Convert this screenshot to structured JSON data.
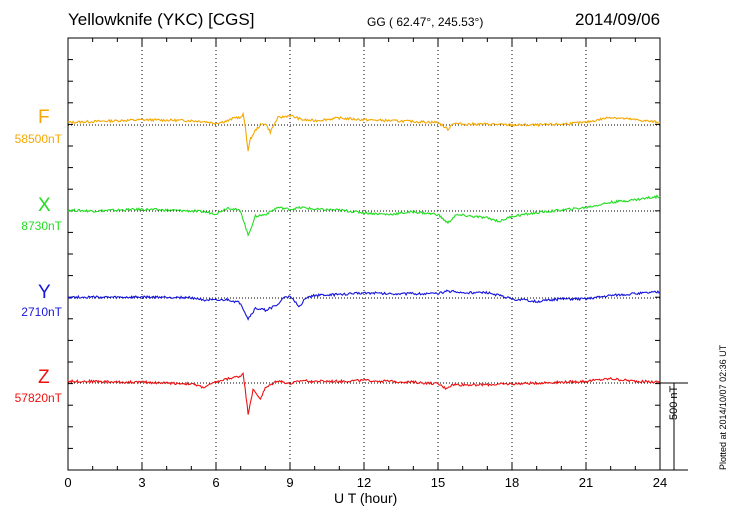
{
  "header": {
    "station": "Yellowknife (YKC)  [CGS]",
    "coords": "GG ( 62.47°, 245.53°)",
    "date": "2014/09/06"
  },
  "footer": {
    "plotted": "Plotted at 2014/10/07 02:36 UT",
    "scale": "500 nT"
  },
  "chart_data": {
    "type": "line",
    "xlabel": "U T (hour)",
    "xlim": [
      0,
      24
    ],
    "xticks": [
      0,
      3,
      6,
      9,
      12,
      15,
      18,
      21,
      24
    ],
    "scale_bar_nT": 500,
    "grid": "dotted vertical every 3 h; dotted baseline per component",
    "series": [
      {
        "name": "F",
        "baseline": "58500nT",
        "color": "#f5a800",
        "points": [
          [
            0,
            15
          ],
          [
            1,
            20
          ],
          [
            2,
            25
          ],
          [
            3,
            30
          ],
          [
            4,
            28
          ],
          [
            5,
            25
          ],
          [
            5.5,
            20
          ],
          [
            6,
            10
          ],
          [
            6.5,
            25
          ],
          [
            6.8,
            45
          ],
          [
            7,
            40
          ],
          [
            7.1,
            60
          ],
          [
            7.2,
            -20
          ],
          [
            7.3,
            -150
          ],
          [
            7.4,
            -80
          ],
          [
            7.6,
            -30
          ],
          [
            7.8,
            0
          ],
          [
            8,
            10
          ],
          [
            8.2,
            -40
          ],
          [
            8.5,
            40
          ],
          [
            9,
            55
          ],
          [
            9.5,
            30
          ],
          [
            10,
            25
          ],
          [
            11,
            40
          ],
          [
            12,
            30
          ],
          [
            13,
            25
          ],
          [
            14,
            20
          ],
          [
            15,
            15
          ],
          [
            15.4,
            -25
          ],
          [
            15.6,
            10
          ],
          [
            16,
            5
          ],
          [
            17,
            5
          ],
          [
            18,
            0
          ],
          [
            19,
            0
          ],
          [
            20,
            5
          ],
          [
            21,
            15
          ],
          [
            22,
            45
          ],
          [
            23,
            30
          ],
          [
            24,
            15
          ]
        ]
      },
      {
        "name": "X",
        "baseline": "8730nT",
        "color": "#22dd22",
        "points": [
          [
            0,
            5
          ],
          [
            1,
            0
          ],
          [
            2,
            5
          ],
          [
            3,
            10
          ],
          [
            4,
            5
          ],
          [
            5,
            0
          ],
          [
            5.5,
            -5
          ],
          [
            6,
            -15
          ],
          [
            6.5,
            20
          ],
          [
            7,
            0
          ],
          [
            7.3,
            -140
          ],
          [
            7.6,
            -30
          ],
          [
            8,
            -20
          ],
          [
            8.5,
            20
          ],
          [
            9,
            10
          ],
          [
            9.5,
            20
          ],
          [
            10,
            10
          ],
          [
            11,
            5
          ],
          [
            12,
            -10
          ],
          [
            13,
            -20
          ],
          [
            14,
            -5
          ],
          [
            15,
            -20
          ],
          [
            15.4,
            -70
          ],
          [
            15.7,
            -25
          ],
          [
            16,
            -25
          ],
          [
            17,
            -40
          ],
          [
            17.5,
            -60
          ],
          [
            18,
            -30
          ],
          [
            19,
            -10
          ],
          [
            20,
            5
          ],
          [
            21,
            20
          ],
          [
            22,
            50
          ],
          [
            23,
            65
          ],
          [
            24,
            85
          ]
        ]
      },
      {
        "name": "Y",
        "baseline": "2710nT",
        "color": "#1515dd",
        "points": [
          [
            0,
            5
          ],
          [
            1,
            5
          ],
          [
            2,
            3
          ],
          [
            3,
            5
          ],
          [
            4,
            5
          ],
          [
            5,
            2
          ],
          [
            5.5,
            -10
          ],
          [
            6,
            -15
          ],
          [
            6.5,
            -10
          ],
          [
            7,
            -30
          ],
          [
            7.3,
            -120
          ],
          [
            7.6,
            -60
          ],
          [
            8,
            -70
          ],
          [
            8.5,
            -40
          ],
          [
            8.8,
            10
          ],
          [
            9,
            5
          ],
          [
            9.4,
            -50
          ],
          [
            9.6,
            0
          ],
          [
            10,
            15
          ],
          [
            11,
            20
          ],
          [
            12,
            30
          ],
          [
            13,
            25
          ],
          [
            14,
            25
          ],
          [
            15,
            25
          ],
          [
            15.4,
            40
          ],
          [
            16,
            30
          ],
          [
            17,
            30
          ],
          [
            18,
            -5
          ],
          [
            19,
            -20
          ],
          [
            20,
            -5
          ],
          [
            21,
            -5
          ],
          [
            22,
            15
          ],
          [
            23,
            25
          ],
          [
            24,
            35
          ]
        ]
      },
      {
        "name": "Z",
        "baseline": "57820nT",
        "color": "#ee1111",
        "points": [
          [
            0,
            10
          ],
          [
            1,
            10
          ],
          [
            2,
            5
          ],
          [
            3,
            5
          ],
          [
            4,
            0
          ],
          [
            5,
            -5
          ],
          [
            5.5,
            -25
          ],
          [
            6,
            5
          ],
          [
            6.5,
            25
          ],
          [
            7,
            40
          ],
          [
            7.1,
            60
          ],
          [
            7.3,
            -175
          ],
          [
            7.5,
            -40
          ],
          [
            7.8,
            -90
          ],
          [
            8,
            -30
          ],
          [
            8.5,
            15
          ],
          [
            9,
            -5
          ],
          [
            9.5,
            15
          ],
          [
            10,
            10
          ],
          [
            11,
            10
          ],
          [
            12,
            15
          ],
          [
            13,
            10
          ],
          [
            14,
            5
          ],
          [
            15,
            -5
          ],
          [
            15.3,
            -30
          ],
          [
            15.6,
            -10
          ],
          [
            16,
            -10
          ],
          [
            17,
            -10
          ],
          [
            18,
            -5
          ],
          [
            19,
            0
          ],
          [
            20,
            5
          ],
          [
            21,
            10
          ],
          [
            22,
            25
          ],
          [
            23,
            10
          ],
          [
            24,
            5
          ]
        ]
      }
    ]
  }
}
